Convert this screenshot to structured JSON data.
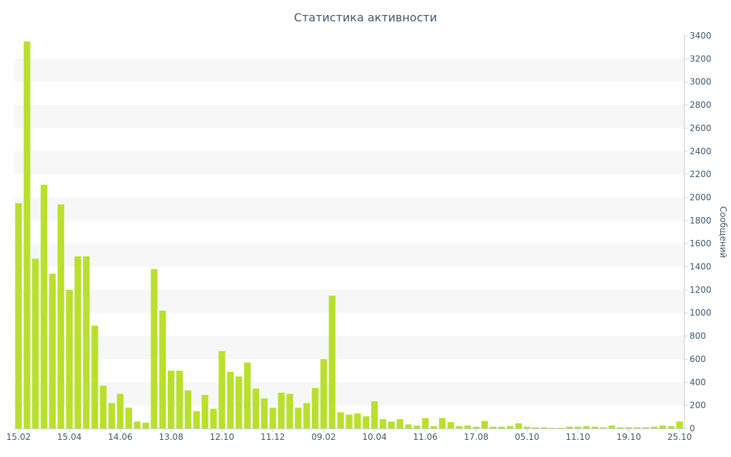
{
  "chart_data": {
    "type": "bar",
    "title": "Статистика активности",
    "xlabel": "",
    "ylabel": "Сообщений",
    "ylim": [
      0,
      3400
    ],
    "yticks": [
      0,
      200,
      400,
      600,
      800,
      1000,
      1200,
      1400,
      1600,
      1800,
      2000,
      2200,
      2400,
      2600,
      2800,
      3000,
      3200,
      3400
    ],
    "y_axis_side": "right",
    "alternating_bands": true,
    "bar_color": "#b9e02c",
    "band_color": "#f7f7f7",
    "text_color": "#3e576f",
    "xtick_labels": [
      {
        "index": 0,
        "label": "15.02"
      },
      {
        "index": 6,
        "label": "15.04"
      },
      {
        "index": 12,
        "label": "14.06"
      },
      {
        "index": 18,
        "label": "13.08"
      },
      {
        "index": 24,
        "label": "12.10"
      },
      {
        "index": 30,
        "label": "11.12"
      },
      {
        "index": 36,
        "label": "09.02"
      },
      {
        "index": 42,
        "label": "10.04"
      },
      {
        "index": 48,
        "label": "11.06"
      },
      {
        "index": 54,
        "label": "17.08"
      },
      {
        "index": 60,
        "label": "05.10"
      },
      {
        "index": 66,
        "label": "11.10"
      },
      {
        "index": 72,
        "label": "19.10"
      },
      {
        "index": 78,
        "label": "25.10"
      }
    ],
    "values": [
      1950,
      3350,
      1470,
      2110,
      1340,
      1940,
      1200,
      1490,
      1490,
      890,
      370,
      220,
      300,
      180,
      60,
      50,
      1380,
      1020,
      500,
      500,
      330,
      150,
      290,
      170,
      670,
      490,
      450,
      570,
      345,
      260,
      180,
      310,
      300,
      180,
      220,
      350,
      600,
      1150,
      140,
      120,
      130,
      105,
      235,
      80,
      60,
      80,
      35,
      25,
      90,
      20,
      90,
      55,
      20,
      25,
      15,
      65,
      15,
      15,
      20,
      45,
      15,
      10,
      10,
      5,
      5,
      15,
      15,
      20,
      15,
      10,
      25,
      10,
      10,
      10,
      10,
      15,
      25,
      20,
      60
    ]
  }
}
